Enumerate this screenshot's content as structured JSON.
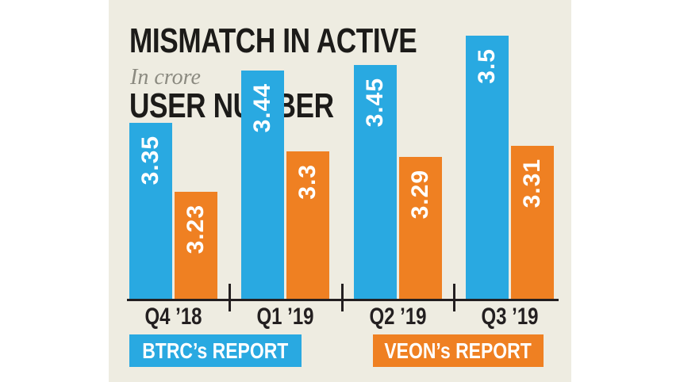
{
  "page": {
    "background": "#ffffff",
    "panel_bg": "#EEECE1",
    "axis_color": "#231f20",
    "title_color": "#1c1b19",
    "subtitle_color": "#8b8a80"
  },
  "title": {
    "line1": "MISMATCH IN ACTIVE",
    "line2": "USER NUMBER",
    "subtitle": "In crore"
  },
  "chart_data": {
    "type": "bar",
    "title": "MISMATCH IN ACTIVE USER NUMBER",
    "subtitle": "In crore",
    "unit": "crore",
    "categories": [
      "Q4 ’18",
      "Q1 ’19",
      "Q2 ’19",
      "Q3 ’19"
    ],
    "series": [
      {
        "name": "BTRC’s REPORT",
        "color": "#29A9E1",
        "values": [
          3.35,
          3.44,
          3.45,
          3.5
        ],
        "labels": [
          "3.35",
          "3.44",
          "3.45",
          "3.5"
        ]
      },
      {
        "name": "VEON’s REPORT",
        "color": "#EF8022",
        "values": [
          3.23,
          3.3,
          3.29,
          3.31
        ],
        "labels": [
          "3.23",
          "3.3",
          "3.29",
          "3.31"
        ]
      }
    ],
    "value_labels_on_bars": true,
    "value_label_color": "#ffffff",
    "value_label_rotation": -90,
    "baseline_truncated": true,
    "value_axis_visible": false,
    "grid": false,
    "legend_position": "bottom"
  }
}
